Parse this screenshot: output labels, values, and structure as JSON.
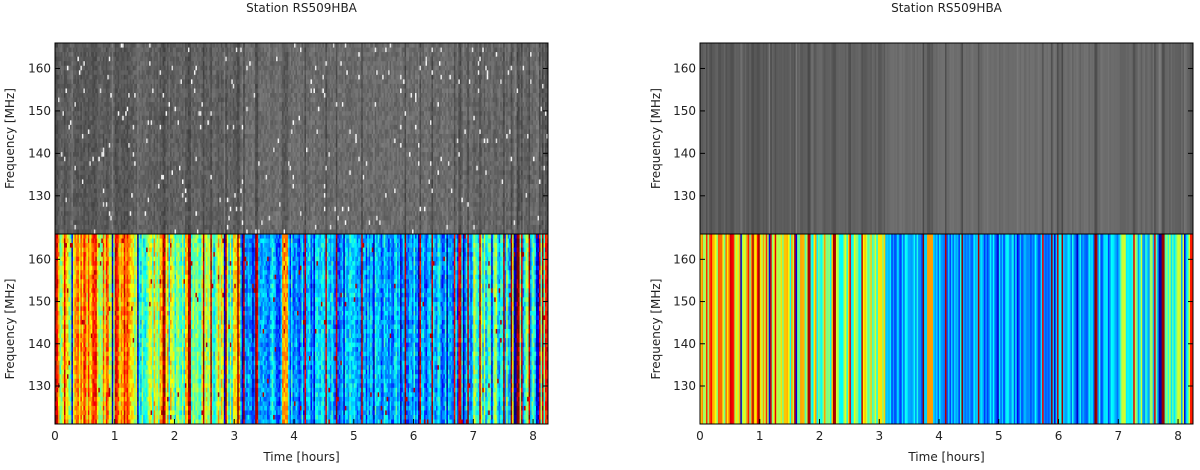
{
  "chart_data": [
    {
      "type": "heatmap",
      "title": "Station RS509HBA",
      "panels": [
        {
          "name": "upper",
          "colormap": "gray",
          "ylabel": "Frequency [MHz]",
          "ylim": [
            121,
            166
          ],
          "yticks": [
            130,
            140,
            150,
            160
          ],
          "ytick_labels": [
            "130",
            "140",
            "150",
            "160"
          ],
          "show_xticks": false
        },
        {
          "name": "lower",
          "colormap": "jet",
          "ylabel": "Frequency [MHz]",
          "ylim": [
            121,
            166
          ],
          "yticks": [
            130,
            140,
            150,
            160
          ],
          "ytick_labels": [
            "130",
            "140",
            "150",
            "160"
          ],
          "show_xticks": true
        }
      ],
      "xlabel": "Time [hours]",
      "xlim": [
        0,
        8.25
      ],
      "xticks": [
        0,
        1,
        2,
        3,
        4,
        5,
        6,
        7,
        8
      ],
      "xtick_labels": [
        "0",
        "1",
        "2",
        "3",
        "4",
        "5",
        "6",
        "7",
        "8"
      ],
      "grid": false
    },
    {
      "type": "heatmap",
      "title": "Station RS509HBA",
      "panels": [
        {
          "name": "upper",
          "colormap": "gray",
          "ylabel": "Frequency [MHz]",
          "ylim": [
            121,
            166
          ],
          "yticks": [
            130,
            140,
            150,
            160
          ],
          "ytick_labels": [
            "130",
            "140",
            "150",
            "160"
          ],
          "show_xticks": false
        },
        {
          "name": "lower",
          "colormap": "jet",
          "ylabel": "Frequency [MHz]",
          "ylim": [
            121,
            166
          ],
          "yticks": [
            130,
            140,
            150,
            160
          ],
          "ytick_labels": [
            "130",
            "140",
            "150",
            "160"
          ],
          "show_xticks": true
        }
      ],
      "xlabel": "Time [hours]",
      "xlim": [
        0,
        8.25
      ],
      "xticks": [
        0,
        1,
        2,
        3,
        4,
        5,
        6,
        7,
        8
      ],
      "xtick_labels": [
        "0",
        "1",
        "2",
        "3",
        "4",
        "5",
        "6",
        "7",
        "8"
      ],
      "grid": false
    }
  ]
}
